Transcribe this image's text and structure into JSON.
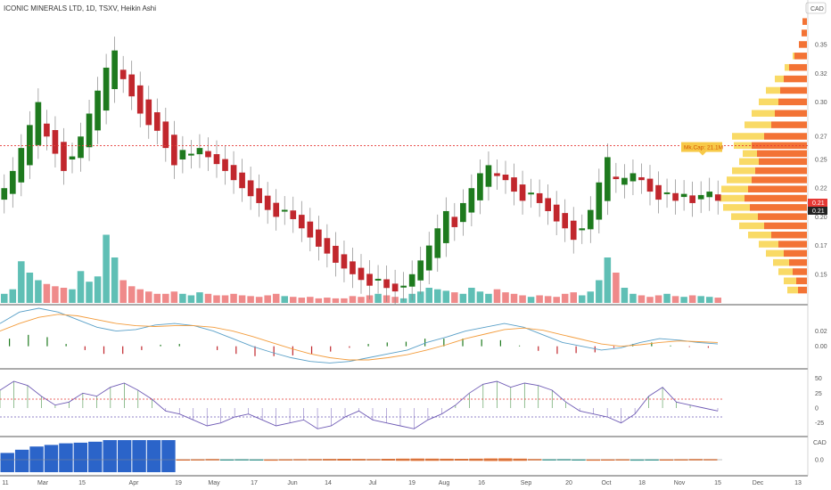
{
  "header": {
    "title": "ICONIC MINERALS LTD, 1D, TSXV, Heikin Ashi",
    "currency": "CAD"
  },
  "colors": {
    "bull": "#1e7a1e",
    "bear": "#c1272d",
    "vol_up": "#5fbfb5",
    "vol_down": "#ef8a8a",
    "ref_line": "#e53935",
    "price_badge": "#e53935",
    "price_badge2": "#222222",
    "vp_orange": "#f26c2a",
    "vp_yellow": "#f9d85e",
    "macd_line": "#5aa0c8",
    "signal_line": "#f39c3c",
    "osc_line": "#6f5bb5",
    "annot_bg": "#f7c948",
    "annot_text": "#d35400",
    "hist_blue": "#2b64c9",
    "bar_orange": "#f26c22",
    "bar_teal": "#2fa39a"
  },
  "chart_data": {
    "type": "candlestick",
    "title": "ICONIC MINERALS LTD, 1D, TSXV, Heikin Ashi",
    "x_tick_labels": [
      "11",
      "Mar",
      "15",
      "Apr",
      "19",
      "May",
      "17",
      "Jun",
      "14",
      "Jul",
      "19",
      "Aug",
      "16",
      "Sep",
      "20",
      "Oct",
      "18",
      "Nov",
      "15",
      "Dec",
      "13"
    ],
    "price_axis": {
      "ticks": [
        "0.35",
        "0.32",
        "0.30",
        "0.27",
        "0.25",
        "0.22",
        "0.20",
        "0.17",
        "0.15"
      ],
      "tick_values": [
        0.35,
        0.325,
        0.3,
        0.27,
        0.25,
        0.225,
        0.2,
        0.175,
        0.15
      ],
      "range": [
        0.125,
        0.375
      ],
      "current_price_labels": [
        "0.21",
        "0.21"
      ]
    },
    "reference_line": {
      "value": 0.262
    },
    "annotation": {
      "text": "Mk.Cap: 21.1M"
    },
    "price_candles": [
      {
        "c": 0.225,
        "color": "bull"
      },
      {
        "c": 0.24,
        "color": "bull"
      },
      {
        "c": 0.26,
        "color": "bull"
      },
      {
        "c": 0.28,
        "color": "bull"
      },
      {
        "c": 0.3,
        "color": "bull"
      },
      {
        "c": 0.27,
        "color": "bear"
      },
      {
        "c": 0.255,
        "color": "bear"
      },
      {
        "c": 0.24,
        "color": "bear"
      },
      {
        "c": 0.25,
        "color": "bull"
      },
      {
        "c": 0.27,
        "color": "bull"
      },
      {
        "c": 0.29,
        "color": "bull"
      },
      {
        "c": 0.31,
        "color": "bull"
      },
      {
        "c": 0.33,
        "color": "bull"
      },
      {
        "c": 0.345,
        "color": "bull"
      },
      {
        "c": 0.32,
        "color": "bear"
      },
      {
        "c": 0.305,
        "color": "bear"
      },
      {
        "c": 0.29,
        "color": "bear"
      },
      {
        "c": 0.28,
        "color": "bear"
      },
      {
        "c": 0.275,
        "color": "bear"
      },
      {
        "c": 0.26,
        "color": "bear"
      },
      {
        "c": 0.245,
        "color": "bear"
      },
      {
        "c": 0.25,
        "color": "bull"
      },
      {
        "c": 0.255,
        "color": "bull"
      },
      {
        "c": 0.26,
        "color": "bull"
      },
      {
        "c": 0.252,
        "color": "bear"
      },
      {
        "c": 0.246,
        "color": "bear"
      },
      {
        "c": 0.24,
        "color": "bear"
      },
      {
        "c": 0.232,
        "color": "bear"
      },
      {
        "c": 0.225,
        "color": "bear"
      },
      {
        "c": 0.218,
        "color": "bear"
      },
      {
        "c": 0.212,
        "color": "bear"
      },
      {
        "c": 0.206,
        "color": "bear"
      },
      {
        "c": 0.2,
        "color": "bear"
      },
      {
        "c": 0.205,
        "color": "bull"
      },
      {
        "c": 0.198,
        "color": "bear"
      },
      {
        "c": 0.19,
        "color": "bear"
      },
      {
        "c": 0.182,
        "color": "bear"
      },
      {
        "c": 0.174,
        "color": "bear"
      },
      {
        "c": 0.168,
        "color": "bear"
      },
      {
        "c": 0.16,
        "color": "bear"
      },
      {
        "c": 0.155,
        "color": "bear"
      },
      {
        "c": 0.15,
        "color": "bear"
      },
      {
        "c": 0.145,
        "color": "bear"
      },
      {
        "c": 0.14,
        "color": "bear"
      },
      {
        "c": 0.146,
        "color": "bull"
      },
      {
        "c": 0.138,
        "color": "bear"
      },
      {
        "c": 0.135,
        "color": "bear"
      },
      {
        "c": 0.14,
        "color": "bull"
      },
      {
        "c": 0.15,
        "color": "bull"
      },
      {
        "c": 0.162,
        "color": "bull"
      },
      {
        "c": 0.175,
        "color": "bull"
      },
      {
        "c": 0.19,
        "color": "bull"
      },
      {
        "c": 0.205,
        "color": "bull"
      },
      {
        "c": 0.2,
        "color": "bear"
      },
      {
        "c": 0.212,
        "color": "bull"
      },
      {
        "c": 0.225,
        "color": "bull"
      },
      {
        "c": 0.238,
        "color": "bull"
      },
      {
        "c": 0.245,
        "color": "bull"
      },
      {
        "c": 0.238,
        "color": "bear"
      },
      {
        "c": 0.232,
        "color": "bear"
      },
      {
        "c": 0.222,
        "color": "bear"
      },
      {
        "c": 0.214,
        "color": "bear"
      },
      {
        "c": 0.22,
        "color": "bull"
      },
      {
        "c": 0.212,
        "color": "bear"
      },
      {
        "c": 0.205,
        "color": "bear"
      },
      {
        "c": 0.196,
        "color": "bear"
      },
      {
        "c": 0.19,
        "color": "bear"
      },
      {
        "c": 0.18,
        "color": "bear"
      },
      {
        "c": 0.19,
        "color": "bull"
      },
      {
        "c": 0.206,
        "color": "bull"
      },
      {
        "c": 0.23,
        "color": "bull"
      },
      {
        "c": 0.252,
        "color": "bull"
      },
      {
        "c": 0.235,
        "color": "bear"
      },
      {
        "c": 0.228,
        "color": "bull"
      },
      {
        "c": 0.238,
        "color": "bull"
      },
      {
        "c": 0.232,
        "color": "bear"
      },
      {
        "c": 0.222,
        "color": "bear"
      },
      {
        "c": 0.215,
        "color": "bear"
      },
      {
        "c": 0.22,
        "color": "bull"
      },
      {
        "c": 0.214,
        "color": "bear"
      },
      {
        "c": 0.22,
        "color": "bull"
      },
      {
        "c": 0.212,
        "color": "bear"
      },
      {
        "c": 0.219,
        "color": "bull"
      },
      {
        "c": 0.222,
        "color": "bull"
      },
      {
        "c": 0.214,
        "color": "bear"
      }
    ],
    "volume": [
      0.12,
      0.18,
      0.55,
      0.4,
      0.3,
      0.25,
      0.22,
      0.2,
      0.18,
      0.42,
      0.28,
      0.35,
      0.9,
      0.6,
      0.3,
      0.22,
      0.18,
      0.15,
      0.12,
      0.12,
      0.15,
      0.12,
      0.1,
      0.14,
      0.12,
      0.1,
      0.1,
      0.12,
      0.1,
      0.09,
      0.08,
      0.1,
      0.12,
      0.09,
      0.08,
      0.07,
      0.08,
      0.06,
      0.07,
      0.06,
      0.06,
      0.09,
      0.08,
      0.1,
      0.12,
      0.1,
      0.08,
      0.06,
      0.12,
      0.15,
      0.2,
      0.18,
      0.16,
      0.14,
      0.12,
      0.2,
      0.15,
      0.12,
      0.18,
      0.14,
      0.12,
      0.1,
      0.08,
      0.1,
      0.09,
      0.08,
      0.12,
      0.14,
      0.1,
      0.15,
      0.3,
      0.6,
      0.4,
      0.2,
      0.12,
      0.1,
      0.08,
      0.1,
      0.12,
      0.09,
      0.08,
      0.1,
      0.09,
      0.08,
      0.07
    ],
    "volume_profile": [
      {
        "price": 0.37,
        "orange": 0.05,
        "yellow": 0.0
      },
      {
        "price": 0.36,
        "orange": 0.06,
        "yellow": 0.0
      },
      {
        "price": 0.35,
        "orange": 0.09,
        "yellow": 0.0
      },
      {
        "price": 0.34,
        "orange": 0.14,
        "yellow": 0.02
      },
      {
        "price": 0.33,
        "orange": 0.2,
        "yellow": 0.05
      },
      {
        "price": 0.32,
        "orange": 0.26,
        "yellow": 0.1
      },
      {
        "price": 0.31,
        "orange": 0.3,
        "yellow": 0.16
      },
      {
        "price": 0.3,
        "orange": 0.32,
        "yellow": 0.22
      },
      {
        "price": 0.29,
        "orange": 0.36,
        "yellow": 0.26
      },
      {
        "price": 0.28,
        "orange": 0.4,
        "yellow": 0.3
      },
      {
        "price": 0.27,
        "orange": 0.48,
        "yellow": 0.36
      },
      {
        "price": 0.262,
        "orange": 0.62,
        "yellow": 0.2
      },
      {
        "price": 0.255,
        "orange": 0.56,
        "yellow": 0.16
      },
      {
        "price": 0.248,
        "orange": 0.54,
        "yellow": 0.22
      },
      {
        "price": 0.24,
        "orange": 0.58,
        "yellow": 0.26
      },
      {
        "price": 0.232,
        "orange": 0.62,
        "yellow": 0.28
      },
      {
        "price": 0.224,
        "orange": 0.66,
        "yellow": 0.3
      },
      {
        "price": 0.216,
        "orange": 0.7,
        "yellow": 0.28
      },
      {
        "price": 0.208,
        "orange": 0.64,
        "yellow": 0.3
      },
      {
        "price": 0.2,
        "orange": 0.55,
        "yellow": 0.3
      },
      {
        "price": 0.192,
        "orange": 0.48,
        "yellow": 0.28
      },
      {
        "price": 0.184,
        "orange": 0.4,
        "yellow": 0.26
      },
      {
        "price": 0.176,
        "orange": 0.32,
        "yellow": 0.22
      },
      {
        "price": 0.168,
        "orange": 0.26,
        "yellow": 0.2
      },
      {
        "price": 0.16,
        "orange": 0.2,
        "yellow": 0.18
      },
      {
        "price": 0.152,
        "orange": 0.16,
        "yellow": 0.16
      },
      {
        "price": 0.144,
        "orange": 0.12,
        "yellow": 0.14
      },
      {
        "price": 0.136,
        "orange": 0.1,
        "yellow": 0.12
      }
    ],
    "macd": {
      "ticks": [
        "0.02",
        "0.00"
      ],
      "tick_values": [
        0.02,
        0.0
      ],
      "range": [
        -0.025,
        0.05
      ],
      "macd_line": [
        0.03,
        0.045,
        0.05,
        0.045,
        0.035,
        0.025,
        0.02,
        0.022,
        0.028,
        0.03,
        0.027,
        0.02,
        0.01,
        0.0,
        -0.008,
        -0.015,
        -0.02,
        -0.022,
        -0.02,
        -0.015,
        -0.01,
        -0.005,
        0.005,
        0.012,
        0.02,
        0.025,
        0.03,
        0.025,
        0.015,
        0.005,
        0.0,
        -0.005,
        -0.002,
        0.005,
        0.01,
        0.008,
        0.005,
        0.003
      ],
      "signal_line": [
        0.02,
        0.03,
        0.038,
        0.042,
        0.04,
        0.035,
        0.03,
        0.027,
        0.026,
        0.027,
        0.027,
        0.025,
        0.02,
        0.013,
        0.005,
        -0.003,
        -0.01,
        -0.015,
        -0.018,
        -0.018,
        -0.015,
        -0.011,
        -0.005,
        0.002,
        0.01,
        0.016,
        0.022,
        0.024,
        0.021,
        0.015,
        0.009,
        0.003,
        0.0,
        0.002,
        0.005,
        0.007,
        0.006,
        0.005
      ],
      "histogram": [
        0.01,
        0.015,
        0.012,
        0.003,
        -0.005,
        -0.01,
        -0.01,
        -0.005,
        0.002,
        0.003,
        0.0,
        -0.005,
        -0.01,
        -0.013,
        -0.013,
        -0.012,
        -0.01,
        -0.007,
        -0.002,
        0.003,
        0.005,
        0.006,
        0.01,
        0.01,
        0.01,
        0.009,
        0.008,
        0.001,
        -0.006,
        -0.01,
        -0.009,
        -0.008,
        -0.002,
        0.003,
        0.005,
        0.001,
        -0.001,
        -0.002
      ]
    },
    "oscillator": {
      "ticks": [
        "50",
        "25",
        "0",
        "-25"
      ],
      "tick_values": [
        50,
        25,
        0,
        -25
      ],
      "range": [
        -45,
        60
      ],
      "upper_level": 15,
      "lower_level": -15,
      "values": [
        30,
        45,
        38,
        20,
        5,
        10,
        25,
        20,
        35,
        42,
        30,
        15,
        -5,
        -10,
        -20,
        -30,
        -25,
        -15,
        -10,
        -20,
        -30,
        -25,
        -20,
        -35,
        -30,
        -15,
        -5,
        -20,
        -25,
        -30,
        -35,
        -20,
        -10,
        5,
        25,
        40,
        45,
        35,
        42,
        38,
        30,
        10,
        -5,
        -10,
        -15,
        -25,
        -10,
        20,
        35,
        10,
        5,
        0,
        -5
      ]
    },
    "bottom_panel": {
      "ticks": [
        "0.0"
      ],
      "tick_values": [
        0.0
      ],
      "axis_label_short": "CAD",
      "histogram": [
        0.6,
        0.7,
        0.8,
        0.85,
        0.9,
        0.92,
        0.95,
        1.0,
        1.0,
        1.0,
        1.0,
        1.0,
        0.05,
        0.06,
        0.08,
        -0.05,
        -0.06,
        -0.05,
        0.04,
        0.06,
        0.07,
        0.08,
        0.09,
        0.1,
        0.09,
        0.08,
        0.1,
        0.12,
        0.13,
        0.12,
        0.11,
        0.1,
        0.12,
        0.14,
        0.15,
        0.12,
        0.08,
        -0.06,
        -0.07,
        -0.05,
        0.04,
        0.05,
        0.06,
        -0.04,
        -0.05,
        0.05,
        0.06,
        0.08,
        0.07
      ]
    }
  }
}
